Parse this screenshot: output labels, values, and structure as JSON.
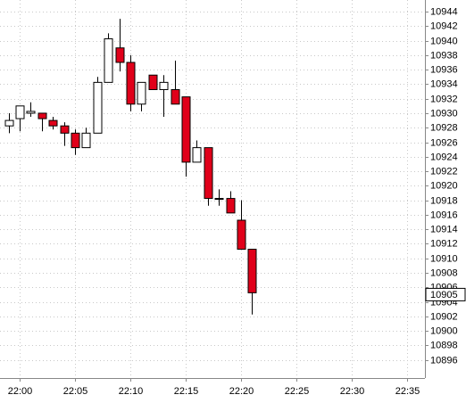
{
  "chart_data": {
    "type": "candlestick",
    "x": [
      "21:59",
      "22:00",
      "22:01",
      "22:02",
      "22:03",
      "22:04",
      "22:05",
      "22:06",
      "22:07",
      "22:08",
      "22:09",
      "22:10",
      "22:11",
      "22:12",
      "22:13",
      "22:14",
      "22:15",
      "22:16",
      "22:17",
      "22:18",
      "22:19",
      "22:20",
      "22:21"
    ],
    "open": [
      10928.25,
      10929.25,
      10930,
      10930,
      10929,
      10928.25,
      10927.25,
      10925.25,
      10927.25,
      10934.25,
      10939,
      10937,
      10931.25,
      10935.25,
      10933.25,
      10933.25,
      10932.25,
      10923.25,
      10925.25,
      10918.25,
      10918.25,
      10915.25,
      10911.25
    ],
    "high": [
      10930,
      10931,
      10931.5,
      10930,
      10929.5,
      10928.75,
      10927.75,
      10928,
      10935,
      10941,
      10943,
      10938,
      10934.25,
      10935.25,
      10935.25,
      10937.25,
      10932.25,
      10926.25,
      10925.25,
      10919.5,
      10919.25,
      10918,
      10911.25
    ],
    "low": [
      10927.25,
      10927.5,
      10929.5,
      10927.5,
      10927.75,
      10925.5,
      10924.25,
      10925.25,
      10927.25,
      10934.25,
      10935.75,
      10930.25,
      10930.25,
      10933.25,
      10929.5,
      10931.25,
      10921.25,
      10923.25,
      10917.25,
      10917.25,
      10916.25,
      10911.25,
      10902.25
    ],
    "close": [
      10929,
      10931,
      10930.25,
      10929.25,
      10928.25,
      10927.25,
      10925.25,
      10927.25,
      10934.25,
      10940.25,
      10937,
      10931.25,
      10934.25,
      10933.25,
      10934.25,
      10931.25,
      10923.25,
      10925.25,
      10918.25,
      10918.25,
      10916.25,
      10911.25,
      10905.25
    ],
    "up_color": "#ffffff",
    "down_color": "#e0001a",
    "outline_color": "#000000",
    "xlim": [
      "21:58:14",
      "22:36:37"
    ],
    "xticks": [
      "22:00",
      "22:05",
      "22:10",
      "22:15",
      "22:20",
      "22:25",
      "22:30",
      "22:35"
    ],
    "ylim": [
      10893.5,
      10945.6
    ],
    "yticks": [
      10896,
      10898,
      10900,
      10902,
      10904,
      10906,
      10908,
      10910,
      10912,
      10914,
      10916,
      10918,
      10920,
      10922,
      10924,
      10926,
      10928,
      10930,
      10932,
      10934,
      10936,
      10938,
      10940,
      10942,
      10944
    ],
    "current_price": 10905,
    "grid": true
  }
}
